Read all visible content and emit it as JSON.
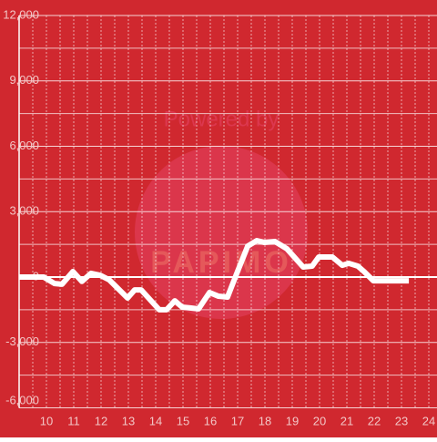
{
  "chart_data": {
    "type": "line",
    "watermark": [
      "Powered by",
      "PAPIMO"
    ],
    "x": [
      9.0,
      9.9,
      10.3,
      10.57,
      10.97,
      11.3,
      11.63,
      11.97,
      12.3,
      12.97,
      13.23,
      13.47,
      14.13,
      14.4,
      14.7,
      14.97,
      15.3,
      15.57,
      15.97,
      16.3,
      16.63,
      16.97,
      17.37,
      17.7,
      17.97,
      18.37,
      18.8,
      19.4,
      19.73,
      19.97,
      20.47,
      20.83,
      21.07,
      21.4,
      21.63,
      21.97,
      22.3,
      23.27
    ],
    "series": [
      {
        "color": "#ffffff",
        "values": [
          0,
          0,
          -300,
          -330,
          250,
          -200,
          170,
          80,
          -130,
          -960,
          -590,
          -590,
          -1500,
          -1500,
          -1090,
          -1380,
          -1420,
          -1460,
          -710,
          -880,
          -920,
          170,
          1420,
          1670,
          1590,
          1630,
          1300,
          460,
          500,
          920,
          920,
          540,
          630,
          500,
          250,
          -170,
          -170,
          -170
        ]
      }
    ],
    "xlim": [
      9,
      24.3
    ],
    "xticks": [
      10,
      11,
      12,
      13,
      14,
      15,
      16,
      17,
      18,
      19,
      20,
      21,
      22,
      23,
      24
    ],
    "x_minor_ticks": [
      9.5,
      10.5,
      11.5,
      12.5,
      13.5,
      14.5,
      15.5,
      16.5,
      17.5,
      18.5,
      19.5,
      20.5,
      21.5,
      22.5,
      23.5
    ],
    "ylim": [
      -6000,
      12000
    ],
    "yticks": [
      {
        "value": -6000,
        "label": "-6,000"
      },
      {
        "value": -3000,
        "label": "-3,000"
      },
      0,
      {
        "value": 3000,
        "label": "3,000"
      },
      {
        "value": 6000,
        "label": "6,000"
      },
      {
        "value": 9000,
        "label": "9,000"
      },
      {
        "value": 12000,
        "label": "12,000"
      }
    ],
    "y_minor_ticks": [
      -4500,
      -1500,
      1500,
      4500,
      7500,
      10500
    ],
    "background": "#d0282f",
    "grid": true
  }
}
